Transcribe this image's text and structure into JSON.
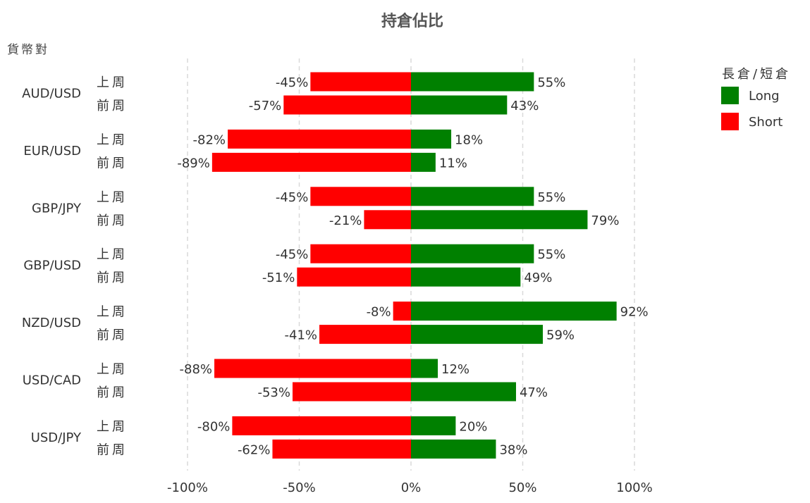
{
  "chart_data": {
    "type": "bar",
    "orientation": "horizontal-diverging",
    "title": "持倉佔比",
    "ylabel": "貨幣對",
    "xlim": [
      -100,
      100
    ],
    "x_ticks": [
      -100,
      -50,
      0,
      50,
      100
    ],
    "x_tick_labels": [
      "-100%",
      "-50%",
      "0%",
      "50%",
      "100%"
    ],
    "grid": "vertical dashed",
    "legend": {
      "title": "長倉/短倉",
      "position": "top-right",
      "items": [
        {
          "label": "Long",
          "color": "#008000"
        },
        {
          "label": "Short",
          "color": "#ff0000"
        }
      ]
    },
    "week_labels": [
      "上周",
      "前周"
    ],
    "groups": [
      {
        "pair": "AUD/USD",
        "rows": [
          {
            "week": "上周",
            "long": 55,
            "short": -45,
            "long_label": "55%",
            "short_label": "-45%"
          },
          {
            "week": "前周",
            "long": 43,
            "short": -57,
            "long_label": "43%",
            "short_label": "-57%"
          }
        ]
      },
      {
        "pair": "EUR/USD",
        "rows": [
          {
            "week": "上周",
            "long": 18,
            "short": -82,
            "long_label": "18%",
            "short_label": "-82%"
          },
          {
            "week": "前周",
            "long": 11,
            "short": -89,
            "long_label": "11%",
            "short_label": "-89%"
          }
        ]
      },
      {
        "pair": "GBP/JPY",
        "rows": [
          {
            "week": "上周",
            "long": 55,
            "short": -45,
            "long_label": "55%",
            "short_label": "-45%"
          },
          {
            "week": "前周",
            "long": 79,
            "short": -21,
            "long_label": "79%",
            "short_label": "-21%"
          }
        ]
      },
      {
        "pair": "GBP/USD",
        "rows": [
          {
            "week": "上周",
            "long": 55,
            "short": -45,
            "long_label": "55%",
            "short_label": "-45%"
          },
          {
            "week": "前周",
            "long": 49,
            "short": -51,
            "long_label": "49%",
            "short_label": "-51%"
          }
        ]
      },
      {
        "pair": "NZD/USD",
        "rows": [
          {
            "week": "上周",
            "long": 92,
            "short": -8,
            "long_label": "92%",
            "short_label": "-8%"
          },
          {
            "week": "前周",
            "long": 59,
            "short": -41,
            "long_label": "59%",
            "short_label": "-41%"
          }
        ]
      },
      {
        "pair": "USD/CAD",
        "rows": [
          {
            "week": "上周",
            "long": 12,
            "short": -88,
            "long_label": "12%",
            "short_label": "-88%"
          },
          {
            "week": "前周",
            "long": 47,
            "short": -53,
            "long_label": "47%",
            "short_label": "-53%"
          }
        ]
      },
      {
        "pair": "USD/JPY",
        "rows": [
          {
            "week": "上周",
            "long": 20,
            "short": -80,
            "long_label": "20%",
            "short_label": "-80%"
          },
          {
            "week": "前周",
            "long": 38,
            "short": -62,
            "long_label": "38%",
            "short_label": "-62%"
          }
        ]
      }
    ]
  }
}
